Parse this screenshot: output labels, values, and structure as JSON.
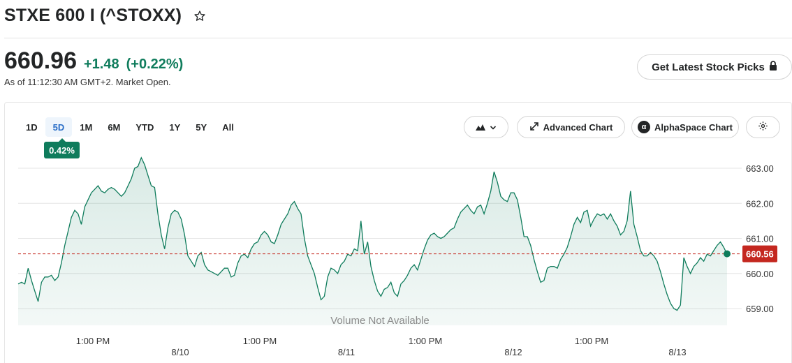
{
  "header": {
    "title": "STXE 600 I (^STOXX)",
    "star_icon": "star-outline-icon"
  },
  "quote": {
    "price": "660.96",
    "change": "+1.48",
    "change_pct": "(+0.22%)",
    "as_of": "As of 11:12:30 AM GMT+2. Market Open.",
    "positive_color": "#0f7c5c"
  },
  "actions": {
    "picks_label": "Get Latest Stock Picks",
    "lock_icon": "lock-icon"
  },
  "toolbar": {
    "ranges": [
      "1D",
      "5D",
      "1M",
      "6M",
      "YTD",
      "1Y",
      "5Y",
      "All"
    ],
    "active_range": "5D",
    "range_change_badge": "0.42%",
    "chart_type_icon": "mountain-chart-icon",
    "advanced_chart_label": "Advanced Chart",
    "alphaspace_label": "AlphaSpace Chart",
    "settings_icon": "gear-icon"
  },
  "chart_data": {
    "type": "area",
    "line_color": "#0f7c5c",
    "prev_close": 660.56,
    "prev_close_label": "660.56",
    "prev_close_color": "#c4271f",
    "ylim": [
      658.5,
      663.5
    ],
    "y_ticks": [
      "663.00",
      "662.00",
      "661.00",
      "660.00",
      "659.00"
    ],
    "x_ticks": [
      "1:00 PM",
      "8/10",
      "1:00 PM",
      "8/11",
      "1:00 PM",
      "8/12",
      "1:00 PM",
      "8/13"
    ],
    "volume_note": "Volume Not Available",
    "grid": true,
    "values": [
      659.7,
      659.75,
      659.7,
      660.15,
      659.8,
      659.5,
      659.2,
      659.75,
      659.9,
      659.9,
      659.95,
      659.8,
      659.9,
      660.3,
      660.8,
      661.2,
      661.6,
      661.8,
      661.7,
      661.4,
      661.9,
      662.1,
      662.3,
      662.4,
      662.5,
      662.35,
      662.3,
      662.4,
      662.45,
      662.4,
      662.3,
      662.2,
      662.3,
      662.5,
      662.7,
      663.0,
      663.05,
      663.3,
      663.1,
      662.8,
      662.5,
      662.45,
      661.7,
      661.1,
      660.7,
      661.3,
      661.7,
      661.8,
      661.75,
      661.55,
      661.1,
      660.5,
      660.35,
      660.2,
      660.5,
      660.6,
      660.25,
      660.1,
      660.05,
      660.0,
      659.95,
      660.05,
      660.15,
      660.15,
      659.9,
      659.95,
      660.3,
      660.5,
      660.55,
      660.45,
      660.7,
      660.85,
      660.9,
      661.1,
      661.2,
      661.1,
      660.9,
      660.85,
      661.1,
      661.4,
      661.55,
      661.7,
      661.95,
      662.05,
      661.85,
      661.7,
      661.0,
      660.5,
      660.25,
      660.0,
      659.6,
      659.25,
      659.35,
      659.9,
      660.15,
      660.1,
      660.0,
      660.25,
      660.35,
      660.55,
      660.5,
      660.7,
      660.65,
      661.5,
      660.55,
      660.9,
      660.2,
      659.8,
      659.5,
      659.35,
      659.55,
      659.6,
      659.75,
      659.45,
      659.35,
      659.7,
      659.8,
      659.95,
      660.15,
      660.25,
      660.1,
      660.4,
      660.7,
      660.95,
      661.1,
      661.15,
      661.05,
      661.0,
      661.05,
      661.15,
      661.25,
      661.3,
      661.55,
      661.75,
      661.85,
      661.95,
      661.8,
      661.7,
      661.9,
      661.95,
      661.7,
      662.0,
      662.35,
      662.9,
      662.6,
      662.2,
      662.1,
      662.05,
      662.3,
      662.3,
      662.1,
      661.6,
      661.05,
      661.05,
      660.8,
      660.4,
      660.05,
      659.75,
      659.8,
      660.15,
      660.2,
      660.2,
      660.15,
      660.4,
      660.55,
      660.75,
      661.05,
      661.4,
      661.6,
      661.45,
      661.75,
      661.8,
      661.35,
      661.55,
      661.7,
      661.65,
      661.7,
      661.55,
      661.7,
      661.5,
      661.35,
      661.1,
      661.2,
      661.5,
      662.35,
      661.4,
      661.05,
      660.65,
      660.5,
      660.5,
      660.6,
      660.5,
      660.35,
      660.05,
      659.7,
      659.4,
      659.15,
      659.0,
      658.95,
      659.1,
      660.45,
      660.2,
      660.0,
      660.2,
      660.3,
      660.45,
      660.35,
      660.55,
      660.5,
      660.65,
      660.8,
      660.9,
      660.75,
      660.55
    ]
  }
}
